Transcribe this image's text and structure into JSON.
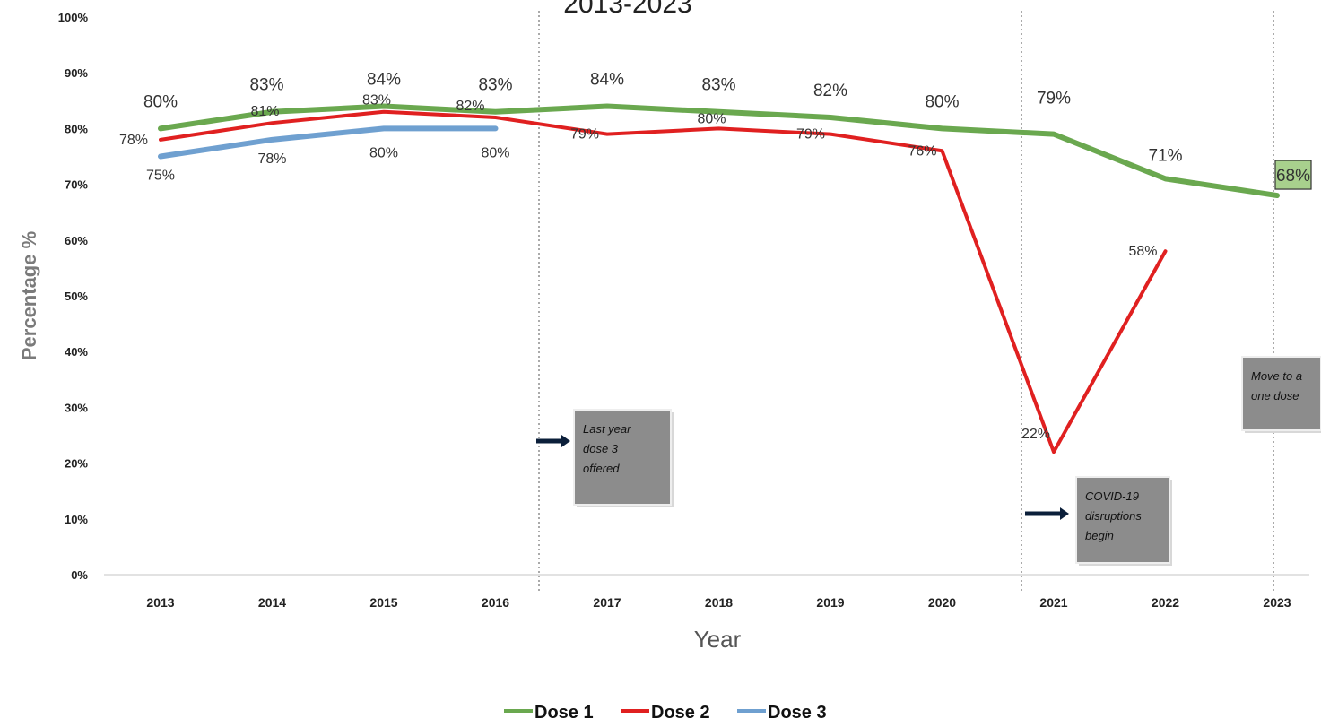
{
  "chart_data": {
    "type": "line",
    "title": "2013-2023",
    "xlabel": "Year",
    "ylabel": "Percentage %",
    "x": [
      "2013",
      "2014",
      "2015",
      "2016",
      "2017",
      "2018",
      "2019",
      "2020",
      "2021",
      "2022",
      "2023"
    ],
    "ylim": [
      0,
      100
    ],
    "yticks": [
      "0%",
      "10%",
      "20%",
      "30%",
      "40%",
      "50%",
      "60%",
      "70%",
      "80%",
      "90%",
      "100%"
    ],
    "grid": false,
    "legend_position": "bottom",
    "series": [
      {
        "name": "Dose 1",
        "color": "#6aa84f",
        "values": [
          80,
          83,
          84,
          83,
          84,
          83,
          82,
          80,
          79,
          71,
          68
        ],
        "labels": [
          "80%",
          "83%",
          "84%",
          "83%",
          "84%",
          "83%",
          "82%",
          "80%",
          "79%",
          "71%",
          "68%"
        ]
      },
      {
        "name": "Dose 2",
        "color": "#e02020",
        "values": [
          78,
          81,
          83,
          82,
          79,
          80,
          79,
          76,
          22,
          58,
          null
        ],
        "labels": [
          "78%",
          "81%",
          "83%",
          "82%",
          "79%",
          "80%",
          "79%",
          "76%",
          "22%",
          "58%",
          null
        ]
      },
      {
        "name": "Dose 3",
        "color": "#6fa0d0",
        "values": [
          75,
          78,
          80,
          80,
          null,
          null,
          null,
          null,
          null,
          null,
          null
        ],
        "labels": [
          "75%",
          "78%",
          "80%",
          "80%",
          null,
          null,
          null,
          null,
          null,
          null,
          null
        ]
      }
    ],
    "annotations": [
      {
        "lines": [
          "Last year",
          "dose 3",
          "offered"
        ]
      },
      {
        "lines": [
          "COVID-19",
          "disruptions",
          "begin"
        ]
      },
      {
        "lines": [
          "Move to a",
          "one dose"
        ]
      }
    ]
  }
}
